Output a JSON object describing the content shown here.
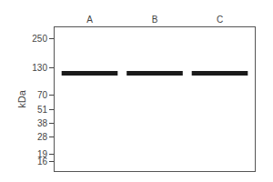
{
  "chart_data": {
    "type": "scatter",
    "ylabel": "kDa",
    "categories": [
      "A",
      "B",
      "C"
    ],
    "values": [
      115,
      115,
      115
    ],
    "color": "#1a1a1a",
    "log": "y",
    "ylim": [
      13,
      320
    ],
    "yticks": [
      250,
      130,
      70,
      51,
      38,
      28,
      19,
      16
    ],
    "grid": false
  }
}
